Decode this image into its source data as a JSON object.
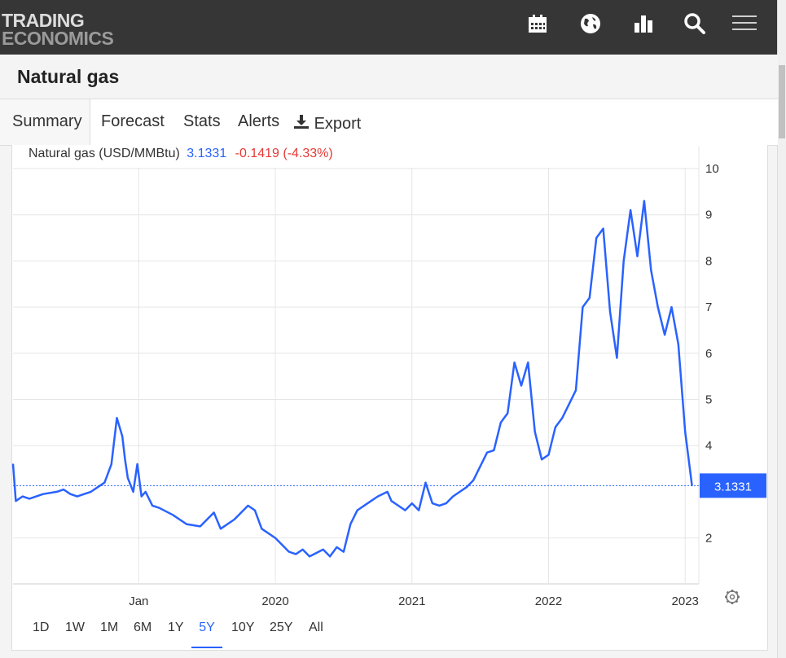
{
  "header": {
    "logo_line1": "TRADING",
    "logo_line2": "ECONOMICS",
    "icons": [
      "calendar-icon",
      "globe-icon",
      "bar-chart-icon",
      "search-icon",
      "menu-icon"
    ]
  },
  "page": {
    "title": "Natural gas"
  },
  "tabs": [
    {
      "label": "Summary",
      "active": true
    },
    {
      "label": "Forecast"
    },
    {
      "label": "Stats"
    },
    {
      "label": "Alerts"
    },
    {
      "label": "Export",
      "icon": "download-icon"
    }
  ],
  "legend": {
    "series_name": "Natural gas (USD/MMBtu)",
    "value": "3.1331",
    "change": "-0.1419 (-4.33%)"
  },
  "ranges": [
    {
      "label": "1D"
    },
    {
      "label": "1W"
    },
    {
      "label": "1M"
    },
    {
      "label": "6M"
    },
    {
      "label": "1Y"
    },
    {
      "label": "5Y",
      "active": true
    },
    {
      "label": "10Y"
    },
    {
      "label": "25Y"
    },
    {
      "label": "All"
    }
  ],
  "colors": {
    "line": "#2962ff",
    "negative": "#e53935",
    "header_bg": "#363636"
  },
  "chart_data": {
    "type": "line",
    "title": "Natural gas (USD/MMBtu)",
    "current_label": "3.1331",
    "y_ticks": [
      2,
      4,
      5,
      6,
      7,
      8,
      9,
      10
    ],
    "ylim": [
      1,
      10.3
    ],
    "xlim": [
      2018.08,
      2023.1
    ],
    "x_ticks": [
      {
        "label": "Jan",
        "x": 2019.0
      },
      {
        "label": "2020",
        "x": 2020.0
      },
      {
        "label": "2021",
        "x": 2021.0
      },
      {
        "label": "2022",
        "x": 2022.0
      },
      {
        "label": "2023",
        "x": 2023.0
      }
    ],
    "grid": true,
    "x": [
      2018.08,
      2018.1,
      2018.15,
      2018.2,
      2018.3,
      2018.4,
      2018.45,
      2018.5,
      2018.55,
      2018.6,
      2018.65,
      2018.7,
      2018.75,
      2018.8,
      2018.84,
      2018.88,
      2018.9,
      2018.92,
      2018.96,
      2018.99,
      2019.02,
      2019.05,
      2019.1,
      2019.15,
      2019.25,
      2019.35,
      2019.45,
      2019.55,
      2019.6,
      2019.7,
      2019.8,
      2019.85,
      2019.9,
      2020.0,
      2020.05,
      2020.1,
      2020.15,
      2020.2,
      2020.25,
      2020.35,
      2020.4,
      2020.45,
      2020.5,
      2020.55,
      2020.6,
      2020.7,
      2020.75,
      2020.82,
      2020.85,
      2020.9,
      2020.95,
      2021.0,
      2021.05,
      2021.1,
      2021.15,
      2021.2,
      2021.25,
      2021.3,
      2021.35,
      2021.4,
      2021.45,
      2021.5,
      2021.55,
      2021.6,
      2021.65,
      2021.7,
      2021.75,
      2021.8,
      2021.85,
      2021.9,
      2021.95,
      2022.0,
      2022.05,
      2022.1,
      2022.15,
      2022.2,
      2022.25,
      2022.3,
      2022.35,
      2022.4,
      2022.45,
      2022.5,
      2022.55,
      2022.6,
      2022.65,
      2022.7,
      2022.75,
      2022.8,
      2022.85,
      2022.9,
      2022.95,
      2023.0,
      2023.05
    ],
    "values": [
      3.6,
      2.8,
      2.9,
      2.85,
      2.95,
      3.0,
      3.05,
      2.95,
      2.9,
      2.95,
      3.0,
      3.1,
      3.2,
      3.6,
      4.6,
      4.2,
      3.7,
      3.3,
      3.0,
      3.6,
      2.9,
      3.0,
      2.7,
      2.65,
      2.5,
      2.3,
      2.25,
      2.55,
      2.2,
      2.4,
      2.7,
      2.6,
      2.2,
      2.0,
      1.85,
      1.7,
      1.65,
      1.75,
      1.6,
      1.75,
      1.6,
      1.8,
      1.7,
      2.3,
      2.6,
      2.8,
      2.9,
      3.0,
      2.8,
      2.7,
      2.6,
      2.75,
      2.6,
      3.2,
      2.75,
      2.7,
      2.75,
      2.9,
      3.0,
      3.1,
      3.25,
      3.55,
      3.85,
      3.9,
      4.5,
      4.7,
      5.8,
      5.3,
      5.8,
      4.3,
      3.7,
      3.8,
      4.4,
      4.6,
      4.9,
      5.2,
      7.0,
      7.2,
      8.5,
      8.7,
      6.9,
      5.9,
      8.0,
      9.1,
      8.1,
      9.3,
      7.8,
      7.0,
      6.4,
      7.0,
      6.2,
      4.3,
      3.1331
    ]
  }
}
